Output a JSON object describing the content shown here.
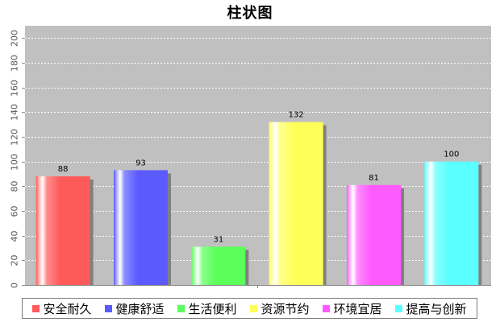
{
  "chart_data": {
    "type": "bar",
    "title": "柱状图",
    "categories": [
      "安全耐久",
      "健康舒适",
      "生活便利",
      "资源节约",
      "环境宜居",
      "提高与创新"
    ],
    "values": [
      88,
      93,
      31,
      132,
      81,
      100
    ],
    "data_labels": [
      "88",
      "93",
      "31",
      "132",
      "81",
      "100"
    ],
    "colors": [
      "#ff5a5a",
      "#5a5aff",
      "#5aff5a",
      "#ffff5a",
      "#ff5aff",
      "#5affff"
    ],
    "ylim": [
      0,
      210
    ],
    "yticks": [
      0,
      20,
      40,
      60,
      80,
      100,
      120,
      140,
      160,
      180,
      200
    ],
    "ytick_labels": [
      "0",
      "20",
      "40",
      "60",
      "80",
      "100",
      "120",
      "140",
      "160",
      "180",
      "200"
    ],
    "xlabel": "",
    "ylabel": "",
    "grid": true,
    "plot_background": "#c0c0c0",
    "legend_position": "bottom"
  }
}
